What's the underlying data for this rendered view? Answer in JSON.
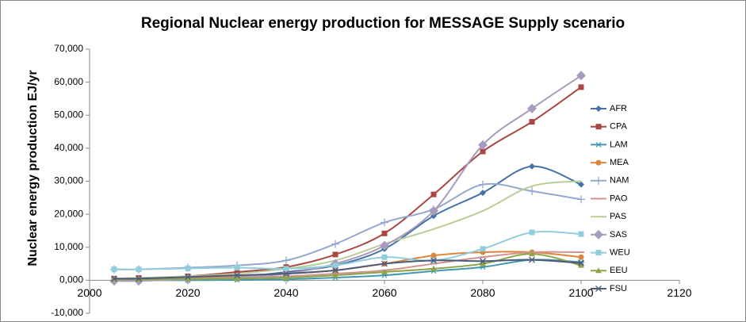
{
  "chart_data": {
    "type": "line",
    "title": "Regional Nuclear energy production for MESSAGE Supply scenario",
    "y_label": "Nuclear energy  production EJ/yr",
    "x": [
      2005,
      2010,
      2020,
      2030,
      2040,
      2050,
      2060,
      2070,
      2080,
      2090,
      2100
    ],
    "xlim": [
      2000,
      2120
    ],
    "xticks": [
      2000,
      2020,
      2040,
      2060,
      2080,
      2100,
      2120
    ],
    "ylim": [
      -10000,
      70000
    ],
    "yticks": [
      {
        "value": -10000,
        "label": "-10,000"
      },
      {
        "value": 0,
        "label": "0,000"
      },
      {
        "value": 10000,
        "label": "10,000"
      },
      {
        "value": 20000,
        "label": "20,000"
      },
      {
        "value": 30000,
        "label": "30,000"
      },
      {
        "value": 40000,
        "label": "40,000"
      },
      {
        "value": 50000,
        "label": "50,000"
      },
      {
        "value": 60000,
        "label": "60,000"
      },
      {
        "value": 70000,
        "label": "70,000"
      }
    ],
    "grid": false,
    "legend": "right",
    "series": [
      {
        "name": "AFR",
        "color": "#4572a7",
        "marker": "diamond",
        "values": [
          0,
          0,
          500,
          1000,
          2500,
          4500,
          9500,
          19500,
          26500,
          34500,
          29000
        ]
      },
      {
        "name": "CPA",
        "color": "#aa4643",
        "marker": "square",
        "values": [
          500,
          700,
          1200,
          2500,
          4000,
          7800,
          14200,
          26000,
          39000,
          48000,
          58500
        ]
      },
      {
        "name": "LAM",
        "color": "#4198af",
        "marker": "star",
        "values": [
          0,
          0,
          0,
          100,
          300,
          800,
          1500,
          2800,
          4000,
          6200,
          5500
        ]
      },
      {
        "name": "MEA",
        "color": "#db843d",
        "marker": "circle",
        "values": [
          300,
          400,
          800,
          1200,
          2000,
          3000,
          5000,
          7500,
          8500,
          8500,
          7000
        ]
      },
      {
        "name": "NAM",
        "color": "#93a9cf",
        "marker": "plus",
        "values": [
          3300,
          3300,
          3800,
          4500,
          6000,
          11000,
          17500,
          21500,
          29000,
          27000,
          24500
        ]
      },
      {
        "name": "PAO",
        "color": "#d19392",
        "marker": "dash",
        "values": [
          200,
          200,
          500,
          800,
          1200,
          2000,
          3000,
          5000,
          7000,
          8500,
          8500
        ]
      },
      {
        "name": "PAS",
        "color": "#b9cd96",
        "marker": "none",
        "values": [
          500,
          700,
          1200,
          2000,
          3500,
          6000,
          11000,
          15500,
          21000,
          28500,
          30000
        ]
      },
      {
        "name": "SAS",
        "color": "#a99bbd",
        "marker": "bigdiamond",
        "values": [
          -200,
          -200,
          300,
          800,
          2000,
          5000,
          10500,
          21000,
          41000,
          52000,
          62000
        ]
      },
      {
        "name": "WEU",
        "color": "#92cddc",
        "marker": "square",
        "values": [
          3300,
          3300,
          3600,
          3800,
          3500,
          4500,
          7000,
          6000,
          9500,
          14500,
          14000
        ]
      },
      {
        "name": "EEU",
        "color": "#8ea547",
        "marker": "triangle",
        "values": [
          300,
          300,
          400,
          500,
          800,
          1500,
          2500,
          3500,
          5000,
          8000,
          4500
        ]
      },
      {
        "name": "FSU",
        "color": "#4d5a7a",
        "marker": "x",
        "values": [
          500,
          500,
          1000,
          1500,
          2000,
          3000,
          5000,
          6000,
          5800,
          6200,
          5200
        ]
      }
    ]
  }
}
